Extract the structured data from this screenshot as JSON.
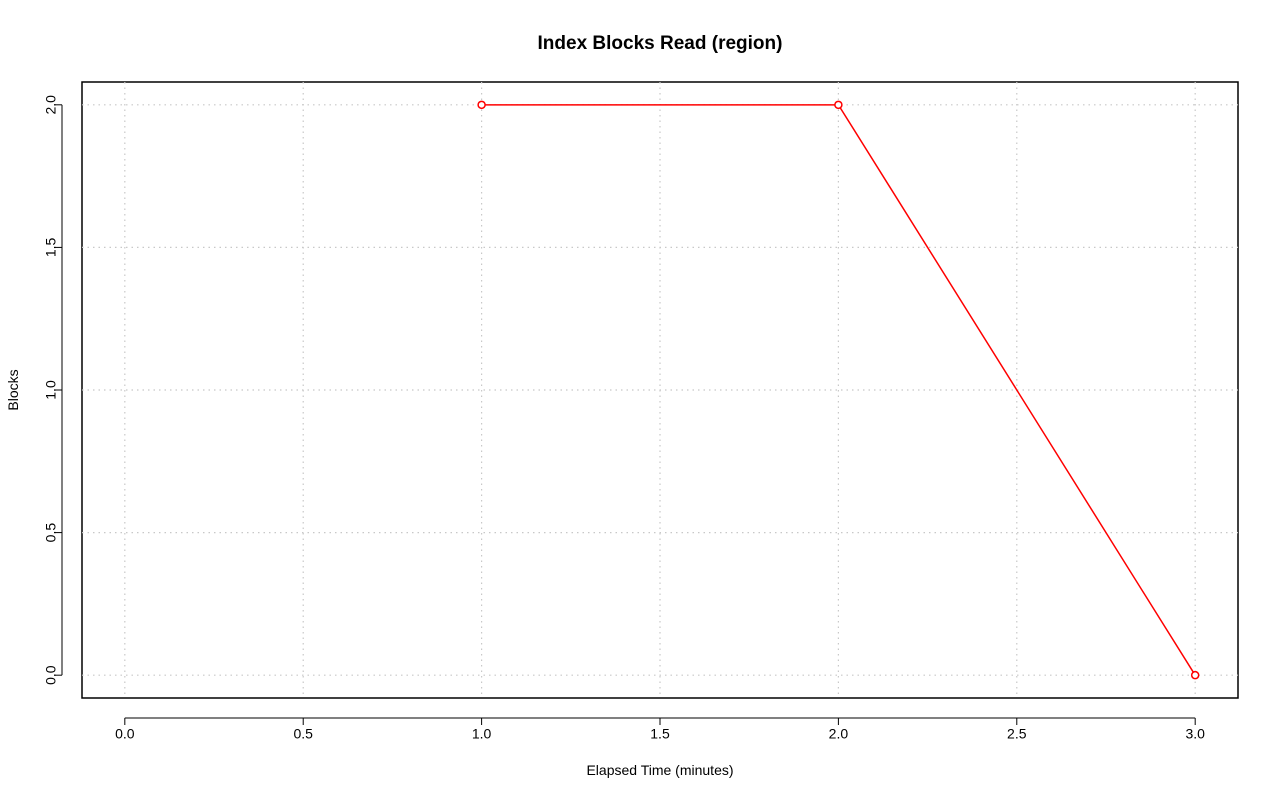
{
  "chart_data": {
    "type": "line",
    "title": "Index Blocks Read (region)",
    "x_label": "Elapsed Time (minutes)",
    "y_label": "Blocks",
    "x": [
      1,
      2,
      3
    ],
    "values": [
      2,
      2,
      0
    ],
    "color": "#ff0000",
    "xlim": [
      -0.12,
      3.12
    ],
    "ylim": [
      -0.08,
      2.08
    ],
    "xticks": [
      {
        "value": 0,
        "label": "0.0"
      },
      {
        "value": 0.5,
        "label": "0.5"
      },
      {
        "value": 1,
        "label": "1.0"
      },
      {
        "value": 1.5,
        "label": "1.5"
      },
      {
        "value": 2,
        "label": "2.0"
      },
      {
        "value": 2.5,
        "label": "2.5"
      },
      {
        "value": 3,
        "label": "3.0"
      }
    ],
    "yticks": [
      {
        "value": 0,
        "label": "0.0"
      },
      {
        "value": 0.5,
        "label": "0.5"
      },
      {
        "value": 1,
        "label": "1.0"
      },
      {
        "value": 1.5,
        "label": "1.5"
      },
      {
        "value": 2,
        "label": "2.0"
      }
    ],
    "grid": true
  }
}
